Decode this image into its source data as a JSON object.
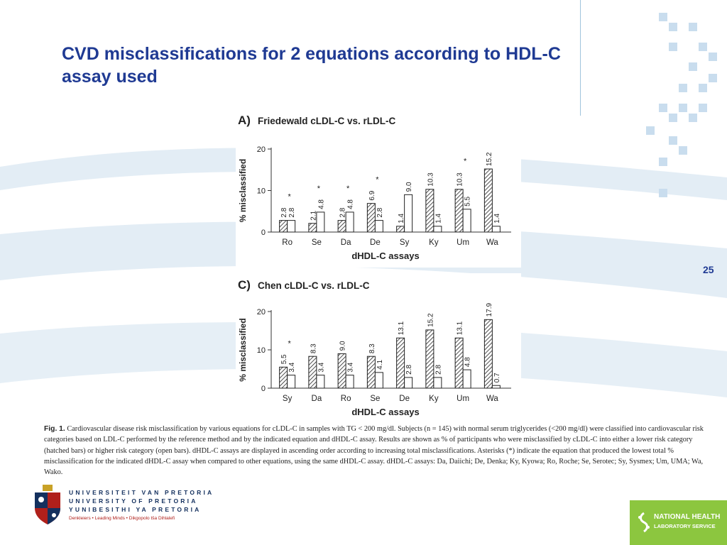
{
  "slide": {
    "title": "CVD misclassifications for 2 equations according to HDL-C assay used",
    "page_number": "25"
  },
  "colors": {
    "title": "#1f3a93",
    "wave": "#dde9f2",
    "pixel": "#c9ddee",
    "nhls_green": "#8cc63f",
    "up_navy": "#14305e",
    "up_red": "#b0201b"
  },
  "chart_data": [
    {
      "type": "bar",
      "panel_letter": "A)",
      "title": "Friedewald cLDL-C vs. rLDL-C",
      "xlabel": "dHDL-C assays",
      "ylabel": "% misclassified",
      "ylim": [
        0,
        20
      ],
      "yticks": [
        0,
        10,
        20
      ],
      "categories": [
        "Ro",
        "Se",
        "Da",
        "De",
        "Sy",
        "Ky",
        "Um",
        "Wa"
      ],
      "series": [
        {
          "pattern": "hatched",
          "values": [
            2.8,
            2.1,
            2.8,
            6.9,
            1.4,
            10.3,
            10.3,
            15.2
          ]
        },
        {
          "pattern": "open",
          "values": [
            2.8,
            4.8,
            4.8,
            2.8,
            9.0,
            1.4,
            5.5,
            1.4
          ]
        }
      ],
      "value_labels": [
        [
          "2.8",
          "2.1",
          "2.8",
          "6.9",
          "1.4",
          "10.3",
          "10.3",
          "15.2"
        ],
        [
          "2.8",
          "4.8",
          "4.8",
          "2.8",
          "9.0",
          "1.4",
          "5.5",
          "1.4"
        ]
      ],
      "asterisks": [
        true,
        true,
        true,
        true,
        false,
        false,
        true,
        false
      ],
      "asterisk_symbol": "*"
    },
    {
      "type": "bar",
      "panel_letter": "C)",
      "title": "Chen cLDL-C vs. rLDL-C",
      "xlabel": "dHDL-C assays",
      "ylabel": "% misclassified",
      "ylim": [
        0,
        20
      ],
      "yticks": [
        0,
        10,
        20
      ],
      "categories": [
        "Sy",
        "Da",
        "Ro",
        "Se",
        "De",
        "Ky",
        "Um",
        "Wa"
      ],
      "series": [
        {
          "pattern": "hatched",
          "values": [
            5.5,
            8.3,
            9.0,
            8.3,
            13.1,
            15.2,
            13.1,
            17.9
          ]
        },
        {
          "pattern": "open",
          "values": [
            3.4,
            3.4,
            3.4,
            4.1,
            2.8,
            2.8,
            4.8,
            0.7
          ]
        }
      ],
      "value_labels": [
        [
          "5.5",
          "8.3",
          "9.0",
          "8.3",
          "13.1",
          "15.2",
          "13.1",
          "17.9"
        ],
        [
          "3.4",
          "3.4",
          "3.4",
          "4.1",
          "2.8",
          "2.8",
          "4.8",
          "0.7"
        ]
      ],
      "asterisks": [
        true,
        false,
        false,
        false,
        false,
        false,
        false,
        false
      ],
      "asterisk_symbol": "*"
    }
  ],
  "caption": {
    "fig_label": "Fig. 1.",
    "text": "Cardiovascular disease risk misclassification by various equations for cLDL-C in samples with TG < 200 mg/dl. Subjects (n = 145) with normal serum triglycerides (<200 mg/dl) were classified into cardiovascular risk categories based on LDL-C performed by the reference method and by the indicated equation and dHDL-C assay. Results are shown as % of participants who were misclassified by cLDL-C into either a lower risk category (hatched bars) or higher risk category (open bars). dHDL-C assays are displayed in ascending order according to increasing total misclassifications. Asterisks (*) indicate the equation that produced the lowest total % misclassification for the indicated dHDL-C assay when compared to other equations, using the same dHDL-C assay. dHDL-C assays: Da, Daiichi; De, Denka; Ky, Kyowa; Ro, Roche; Se, Serotec; Sy, Sysmex; Um, UMA; Wa, Wako."
  },
  "logos": {
    "up_line1": "UNIVERSITEIT VAN PRETORIA",
    "up_line2": "UNIVERSITY OF PRETORIA",
    "up_line3": "YUNIBESITHI YA PRETORIA",
    "up_motto": "Denkleiers • Leading Minds • Dikgopolo tša Dihlalefi",
    "nhls_line1": "NATIONAL HEALTH",
    "nhls_line2": "LABORATORY SERVICE"
  }
}
